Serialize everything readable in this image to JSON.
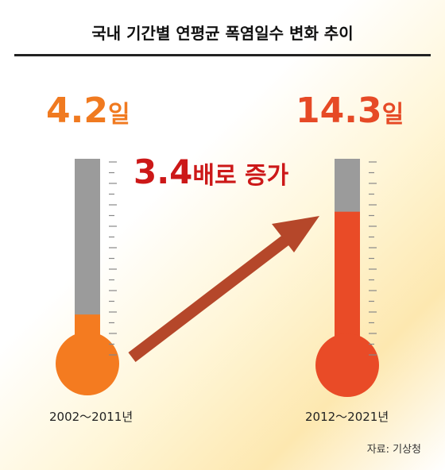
{
  "title": "국내 기간별 연평균 폭염일수 변화 추이",
  "chart_data": {
    "type": "bar",
    "title": "국내 기간별 연평균 폭염일수 변화 추이",
    "categories": [
      "2002～2011년",
      "2012～2021년"
    ],
    "values": [
      4.2,
      14.3
    ],
    "value_labels": [
      {
        "num": "4.2",
        "unit": "일"
      },
      {
        "num": "14.3",
        "unit": "일"
      }
    ],
    "unit": "일",
    "ylim": [
      0,
      19.5
    ],
    "annotation": {
      "num": "3.4",
      "text": "배로 증가"
    },
    "colors": {
      "gray": "#9b9b9b",
      "bar1": "#f47b20",
      "bar2": "#e94b27",
      "arrow": "#b5472a"
    }
  },
  "source": "자료: 기상청"
}
